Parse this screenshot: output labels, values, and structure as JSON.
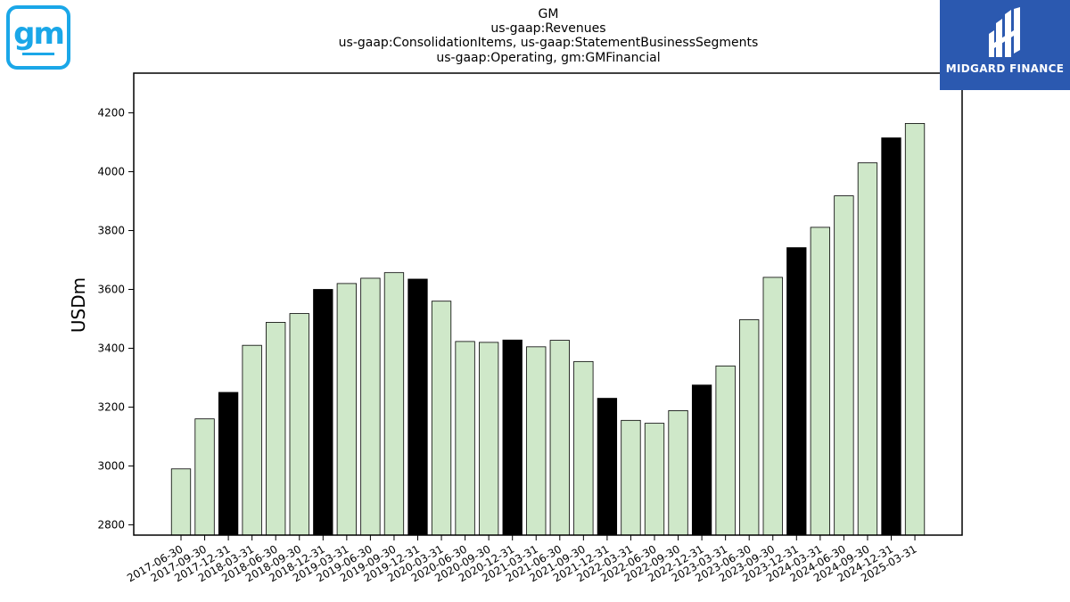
{
  "chart_data": {
    "type": "bar",
    "title": "GM",
    "subtitle_lines": [
      "us-gaap:Revenues",
      "us-gaap:ConsolidationItems, us-gaap:StatementBusinessSegments",
      "us-gaap:Operating, gm:GMFinancial"
    ],
    "xlabel": "",
    "ylabel": "USDm",
    "ylim": [
      2765,
      4335
    ],
    "yticks": [
      2800,
      3000,
      3200,
      3400,
      3600,
      3800,
      4000,
      4200
    ],
    "categories": [
      "2017-06-30",
      "2017-09-30",
      "2017-12-31",
      "2018-03-31",
      "2018-06-30",
      "2018-09-30",
      "2018-12-31",
      "2019-03-31",
      "2019-06-30",
      "2019-09-30",
      "2019-12-31",
      "2020-03-31",
      "2020-06-30",
      "2020-09-30",
      "2020-12-31",
      "2021-03-31",
      "2021-06-30",
      "2021-09-30",
      "2021-12-31",
      "2022-03-31",
      "2022-06-30",
      "2022-09-30",
      "2022-12-31",
      "2023-03-31",
      "2023-06-30",
      "2023-09-30",
      "2023-12-31",
      "2024-03-31",
      "2024-06-30",
      "2024-09-30",
      "2024-12-31",
      "2025-03-31"
    ],
    "values": [
      2990,
      3160,
      3250,
      3410,
      3488,
      3518,
      3600,
      3620,
      3638,
      3657,
      3635,
      3560,
      3423,
      3420,
      3428,
      3405,
      3427,
      3355,
      3230,
      3155,
      3145,
      3188,
      3275,
      3340,
      3497,
      3641,
      3742,
      3811,
      3918,
      4030,
      4115,
      4164
    ],
    "colors": {
      "default": "#cfe8c9",
      "year_end": "#000000",
      "edge": "#000000"
    },
    "year_end_flags": [
      false,
      false,
      true,
      false,
      false,
      false,
      true,
      false,
      false,
      false,
      true,
      false,
      false,
      false,
      true,
      false,
      false,
      false,
      true,
      false,
      false,
      false,
      true,
      false,
      false,
      false,
      true,
      false,
      false,
      false,
      true,
      false
    ],
    "grid": false,
    "legend": "none"
  },
  "logos": {
    "gm_text": "gm",
    "midgard_text": "MIDGARD FINANCE"
  }
}
